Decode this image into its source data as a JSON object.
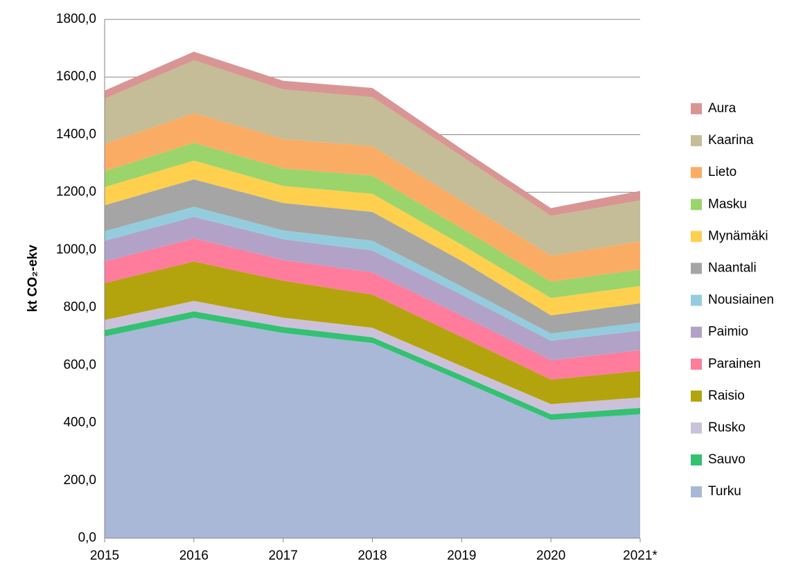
{
  "chart_data": {
    "type": "stacked-area",
    "y_label": "kt CO₂-ekv",
    "categories": [
      "2015",
      "2016",
      "2017",
      "2018",
      "2019",
      "2020",
      "2021*"
    ],
    "ylim": [
      0,
      1800
    ],
    "yticks": [
      {
        "value": 0,
        "label": "0,0"
      },
      {
        "value": 200,
        "label": "200,0"
      },
      {
        "value": 400,
        "label": "400,0"
      },
      {
        "value": 600,
        "label": "600,0"
      },
      {
        "value": 800,
        "label": "800,0"
      },
      {
        "value": 1000,
        "label": "1000,0"
      },
      {
        "value": 1200,
        "label": "1200,0"
      },
      {
        "value": 1400,
        "label": "1400,0"
      },
      {
        "value": 1600,
        "label": "1600,0"
      },
      {
        "value": 1800,
        "label": "1800,0"
      }
    ],
    "grid": true,
    "legend": "right",
    "series": [
      {
        "name": "Turku",
        "color": "#a9b8d6",
        "values": [
          700,
          765,
          712,
          677,
          545,
          410,
          430
        ]
      },
      {
        "name": "Sauvo",
        "color": "#33c172",
        "values": [
          22,
          22,
          21,
          20,
          20,
          20,
          22
        ]
      },
      {
        "name": "Rusko",
        "color": "#ccc1da",
        "values": [
          35,
          36,
          32,
          33,
          32,
          35,
          36
        ]
      },
      {
        "name": "Raisio",
        "color": "#b3a30d",
        "values": [
          128,
          137,
          128,
          115,
          101,
          85,
          92
        ]
      },
      {
        "name": "Parainen",
        "color": "#ff7c9c",
        "values": [
          75,
          80,
          72,
          77,
          74,
          67,
          72
        ]
      },
      {
        "name": "Paimio",
        "color": "#b3a2c7",
        "values": [
          72,
          75,
          72,
          76,
          73,
          68,
          68
        ]
      },
      {
        "name": "Nousiainen",
        "color": "#93cddd",
        "values": [
          33,
          35,
          31,
          34,
          28,
          25,
          28
        ]
      },
      {
        "name": "Naantali",
        "color": "#a5a5a5",
        "values": [
          90,
          95,
          95,
          100,
          89,
          63,
          67
        ]
      },
      {
        "name": "Mynämäki",
        "color": "#ffd04d",
        "values": [
          63,
          65,
          59,
          63,
          56,
          60,
          60
        ]
      },
      {
        "name": "Masku",
        "color": "#9bd46a",
        "values": [
          55,
          62,
          61,
          63,
          57,
          57,
          57
        ]
      },
      {
        "name": "Lieto",
        "color": "#fbac64",
        "values": [
          95,
          103,
          102,
          102,
          95,
          90,
          98
        ]
      },
      {
        "name": "Kaarina",
        "color": "#c4bd97",
        "values": [
          157,
          183,
          172,
          170,
          155,
          138,
          142
        ]
      },
      {
        "name": "Aura",
        "color": "#d99594",
        "values": [
          28,
          30,
          30,
          32,
          25,
          27,
          33
        ]
      }
    ]
  }
}
